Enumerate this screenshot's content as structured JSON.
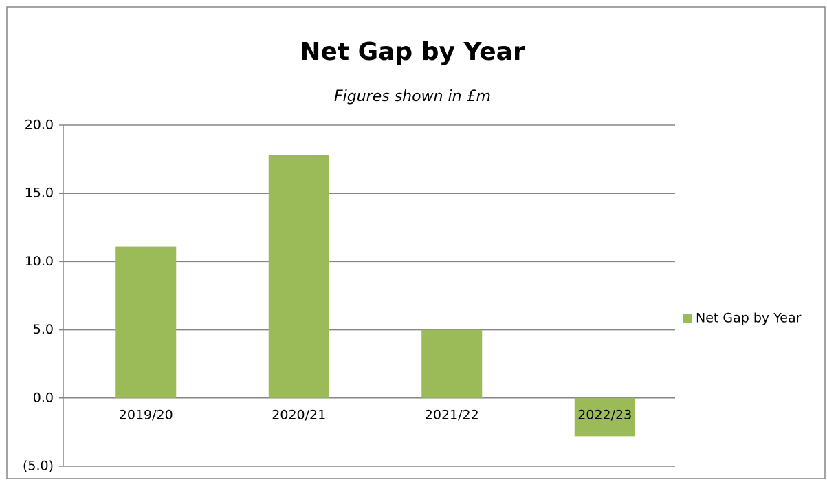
{
  "chart_data": {
    "type": "bar",
    "title": "Net Gap by Year",
    "subtitle": "Figures shown in £m",
    "categories": [
      "2019/20",
      "2020/21",
      "2021/22",
      "2022/23"
    ],
    "series": [
      {
        "name": "Net Gap by Year",
        "color": "#9bbb59",
        "values": [
          11.1,
          17.8,
          5.0,
          -2.8
        ]
      }
    ],
    "ylim": [
      -5,
      20
    ],
    "yticks": [
      {
        "value": -5,
        "label": "(5.0)"
      },
      {
        "value": 0,
        "label": "0.0"
      },
      {
        "value": 5,
        "label": "5.0"
      },
      {
        "value": 10,
        "label": "10.0"
      },
      {
        "value": 15,
        "label": "15.0"
      },
      {
        "value": 20,
        "label": "20.0"
      }
    ],
    "grid": true,
    "legend": "right"
  }
}
